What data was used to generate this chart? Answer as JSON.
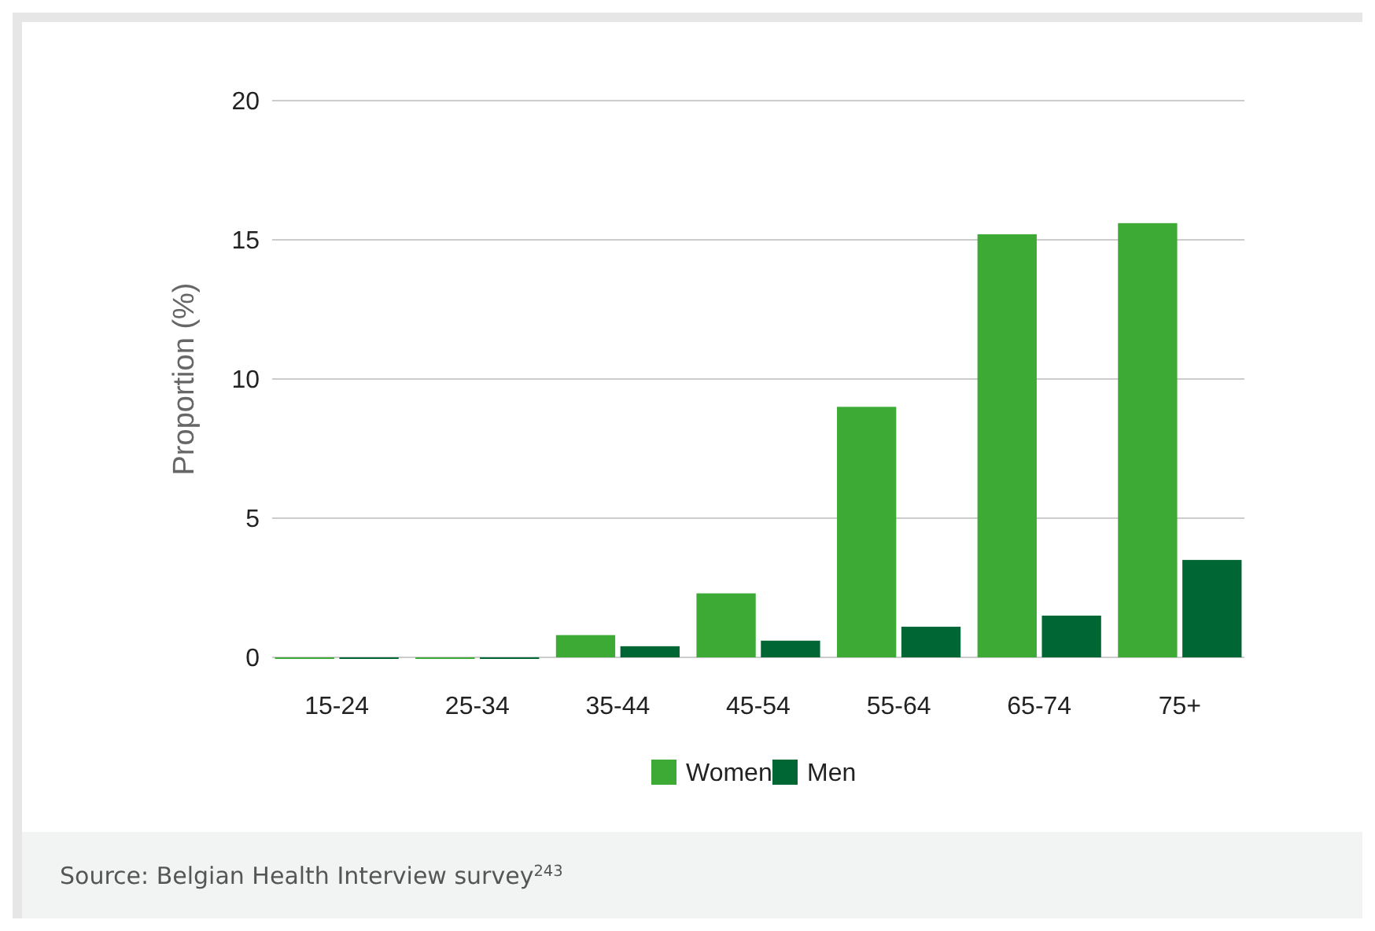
{
  "chart_data": {
    "type": "bar",
    "ylabel": "Proportion (%)",
    "categories": [
      "15-24",
      "25-34",
      "35-44",
      "45-54",
      "55-64",
      "65-74",
      "75+"
    ],
    "series": [
      {
        "name": "Women",
        "color": "#3caa35",
        "values": [
          0,
          0,
          0.8,
          2.3,
          9.0,
          15.2,
          15.6
        ]
      },
      {
        "name": "Men",
        "color": "#006633",
        "values": [
          0,
          0,
          0.4,
          0.6,
          1.1,
          1.5,
          3.5
        ]
      }
    ],
    "ylim": [
      0,
      20
    ],
    "yticks": [
      0,
      5,
      10,
      15,
      20
    ],
    "grid": "y",
    "legend": "bottom",
    "annotations": [
      "Source: Belgian Health Interview survey$^{243}$"
    ]
  }
}
